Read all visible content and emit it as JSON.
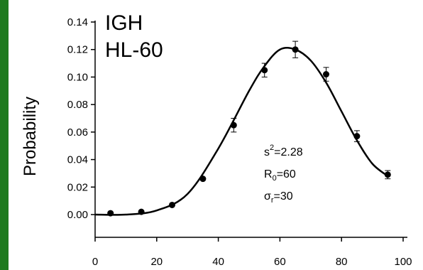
{
  "chart_data": {
    "type": "scatter",
    "title_lines": [
      "IGH",
      "HL-60"
    ],
    "xlabel": "",
    "ylabel": "Probability",
    "xlim": [
      0,
      100
    ],
    "ylim": [
      0,
      0.14
    ],
    "x_ticks": [
      "0",
      "20",
      "40",
      "60",
      "80",
      "100"
    ],
    "y_ticks": [
      "0.00",
      "0.02",
      "0.04",
      "0.06",
      "0.08",
      "0.10",
      "0.12",
      "0.14"
    ],
    "grid": false,
    "points": {
      "x": [
        5,
        15,
        25,
        35,
        45,
        55,
        65,
        75,
        85,
        95
      ],
      "y": [
        0.001,
        0.002,
        0.007,
        0.026,
        0.065,
        0.105,
        0.12,
        0.102,
        0.057,
        0.029
      ],
      "err": [
        0.0,
        0.0,
        0.0,
        0.0,
        0.005,
        0.005,
        0.006,
        0.005,
        0.004,
        0.003
      ]
    },
    "fit_curve": {
      "x": [
        0,
        10,
        20,
        30,
        40,
        50,
        55,
        60,
        65,
        70,
        75,
        80,
        85,
        90,
        95
      ],
      "y": [
        0.0,
        0.0,
        0.003,
        0.015,
        0.048,
        0.09,
        0.108,
        0.12,
        0.12,
        0.112,
        0.096,
        0.075,
        0.054,
        0.037,
        0.028
      ]
    },
    "annotation": {
      "s_base": "s",
      "s_sup": "2",
      "s_value": "=2.28",
      "r_base": "R",
      "r_sub": "0",
      "r_value": "=60",
      "sigma_base": "σ",
      "sigma_sub": "r",
      "sigma_value": "=30"
    },
    "colors": {
      "line": "#000000",
      "marker": "#000000",
      "left_bar": "#1e7a1e"
    }
  }
}
